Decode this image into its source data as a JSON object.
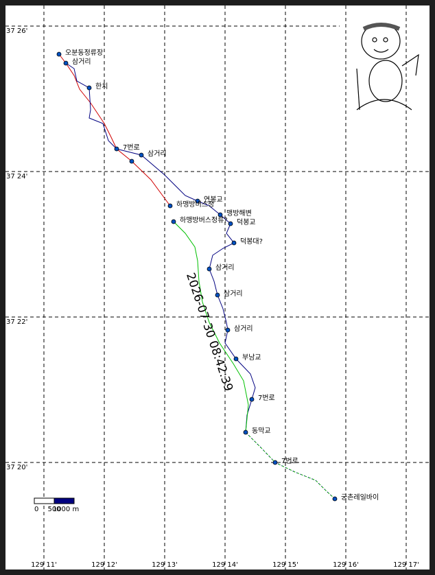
{
  "map": {
    "latitude_labels": [
      "37 26'",
      "37 24'",
      "37 22'",
      "37 20'"
    ],
    "longitude_labels": [
      "129 11'",
      "129 12'",
      "129 13'",
      "129 14'",
      "129 15'",
      "129 16'",
      "129 17'"
    ],
    "waypoints": [
      "오분동정류장",
      "삼거리",
      "한치",
      "7번로",
      "삼거리",
      "연봉교",
      "하맹방버스정",
      "맹방해변",
      "덕봉교",
      "하맹방버스정류?",
      "덕봉대?",
      "삼거리",
      "삼거리",
      "삼거리",
      "부남교",
      "7번로",
      "동막교",
      "7번로",
      "궁촌레일바이"
    ],
    "timestamp": "2026-07-30 08:42:39",
    "scale_bar": {
      "labels": [
        "0",
        "500",
        "1000 m"
      ]
    }
  }
}
